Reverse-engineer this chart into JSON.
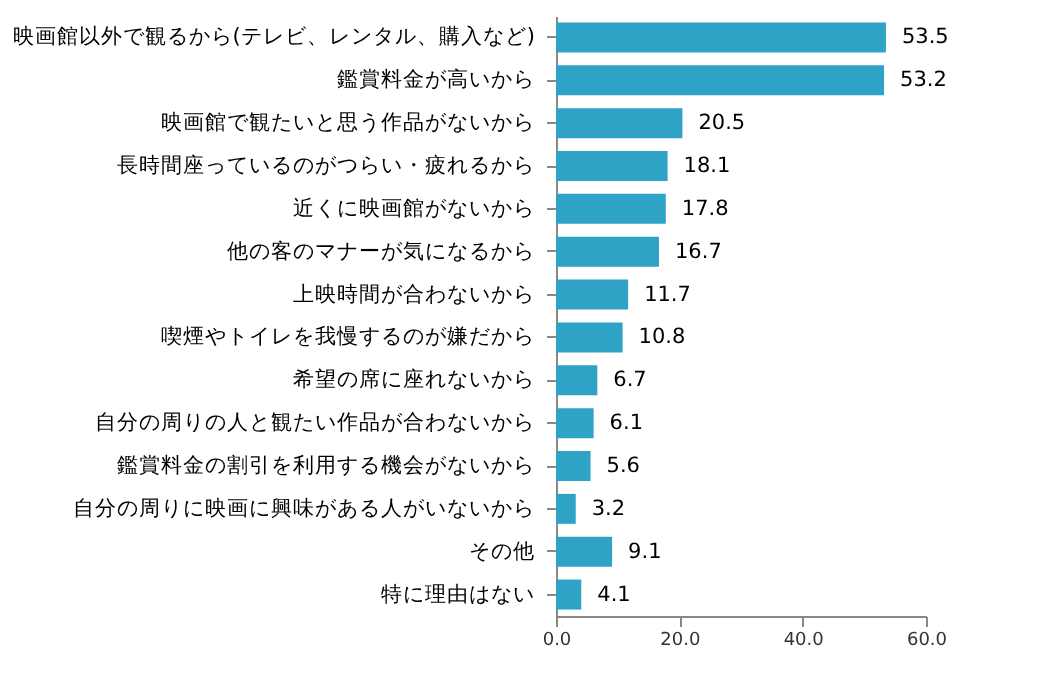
{
  "chart_data": {
    "type": "bar",
    "orientation": "horizontal",
    "categories": [
      "映画館以外で観るから(テレビ、レンタル、購入など)",
      "鑑賞料金が高いから",
      "映画館で観たいと思う作品がないから",
      "長時間座っているのがつらい・疲れるから",
      "近くに映画館がないから",
      "他の客のマナーが気になるから",
      "上映時間が合わないから",
      "喫煙やトイレを我慢するのが嫌だから",
      "希望の席に座れないから",
      "自分の周りの人と観たい作品が合わないから",
      "鑑賞料金の割引を利用する機会がないから",
      "自分の周りに映画に興味がある人がいないから",
      "その他",
      "特に理由はない"
    ],
    "values": [
      53.5,
      53.2,
      20.5,
      18.1,
      17.8,
      16.7,
      11.7,
      10.8,
      6.7,
      6.1,
      5.6,
      3.2,
      9.1,
      4.1
    ],
    "color": "#2ea3c6",
    "xlim": [
      0,
      60
    ],
    "xticks": [
      {
        "value": 0,
        "label": "0.0"
      },
      {
        "value": 20,
        "label": "20.0"
      },
      {
        "value": 40,
        "label": "40.0"
      },
      {
        "value": 60,
        "label": "60.0"
      }
    ],
    "data_labels": true,
    "grid": false
  }
}
